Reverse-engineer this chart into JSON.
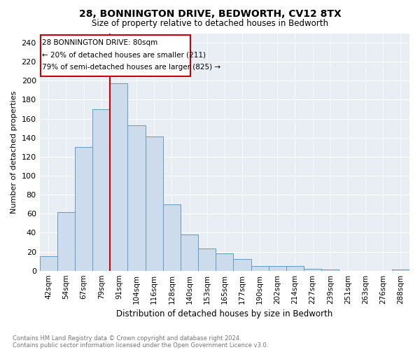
{
  "title": "28, BONNINGTON DRIVE, BEDWORTH, CV12 8TX",
  "subtitle": "Size of property relative to detached houses in Bedworth",
  "xlabel": "Distribution of detached houses by size in Bedworth",
  "ylabel": "Number of detached properties",
  "footnote1": "Contains HM Land Registry data © Crown copyright and database right 2024.",
  "footnote2": "Contains public sector information licensed under the Open Government Licence v3.0.",
  "bins": [
    "42sqm",
    "54sqm",
    "67sqm",
    "79sqm",
    "91sqm",
    "104sqm",
    "116sqm",
    "128sqm",
    "140sqm",
    "153sqm",
    "165sqm",
    "177sqm",
    "190sqm",
    "202sqm",
    "214sqm",
    "227sqm",
    "239sqm",
    "251sqm",
    "263sqm",
    "276sqm",
    "288sqm"
  ],
  "values": [
    15,
    62,
    130,
    170,
    197,
    153,
    141,
    70,
    38,
    23,
    18,
    12,
    5,
    5,
    5,
    2,
    1,
    0,
    0,
    0,
    1
  ],
  "bar_color": "#ccdcec",
  "bar_edge_color": "#6699bb",
  "red_line_after_index": 3,
  "highlight_color": "#cc0000",
  "annotation_line1": "28 BONNINGTON DRIVE: 80sqm",
  "annotation_line2": "← 20% of detached houses are smaller (211)",
  "annotation_line3": "79% of semi-detached houses are larger (825) →",
  "annotation_box_color": "#cc0000",
  "ylim": [
    0,
    250
  ],
  "yticks": [
    0,
    20,
    40,
    60,
    80,
    100,
    120,
    140,
    160,
    180,
    200,
    220,
    240
  ],
  "bg_color": "#e8eef4",
  "grid_color": "#ffffff"
}
